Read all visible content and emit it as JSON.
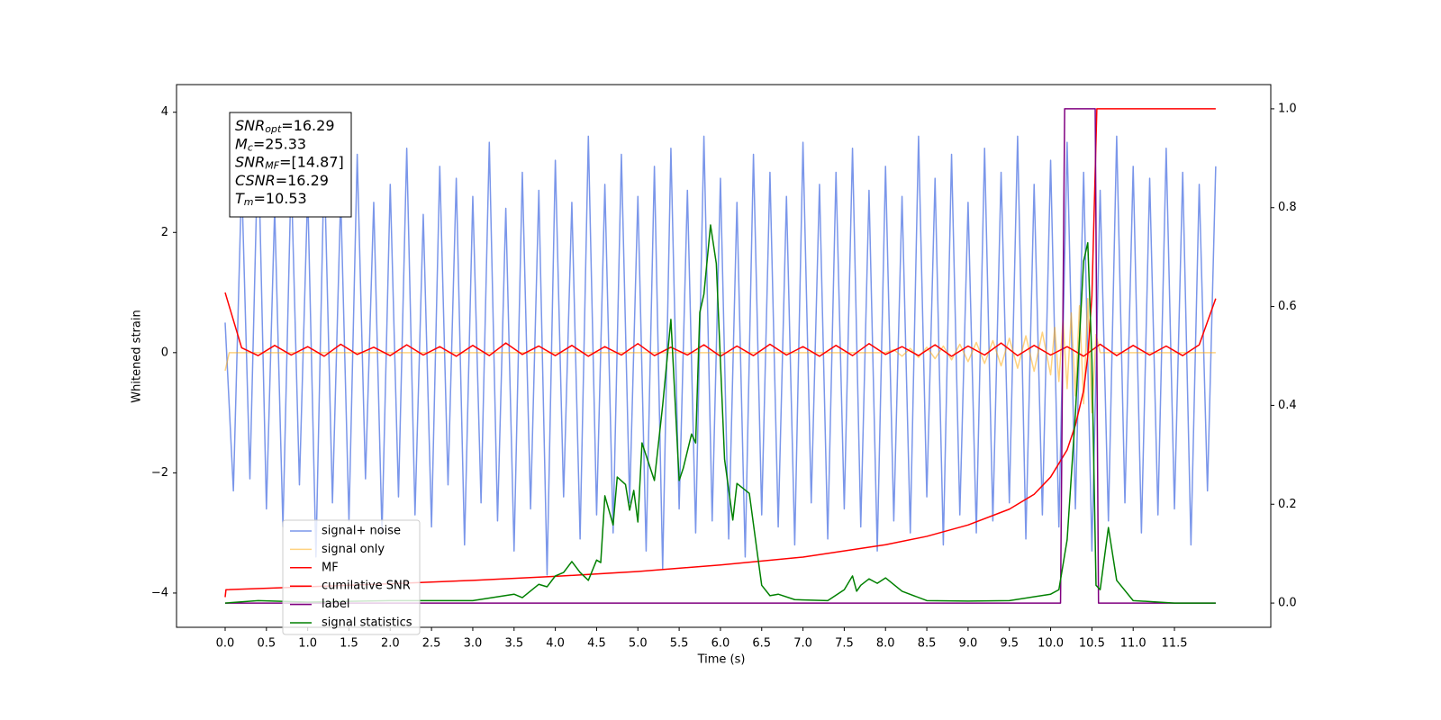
{
  "chart_data": {
    "type": "line",
    "xlabel": "Time (s)",
    "ylabel": "Whitened strain",
    "xlim": [
      -0.589,
      12.667
    ],
    "ylim": [
      -4.57,
      4.46
    ],
    "y2lim": [
      -0.049,
      1.049
    ],
    "xticks": [
      {
        "value": 0,
        "label": "0.0"
      },
      0.5,
      {
        "value": 1,
        "label": "1.0"
      },
      1.5,
      {
        "value": 2,
        "label": "2.0"
      },
      2.5,
      {
        "value": 3,
        "label": "3.0"
      },
      3.5,
      {
        "value": 4,
        "label": "4.0"
      },
      4.5,
      {
        "value": 5,
        "label": "5.0"
      },
      5.5,
      {
        "value": 6,
        "label": "6.0"
      },
      6.5,
      {
        "value": 7,
        "label": "7.0"
      },
      7.5,
      {
        "value": 8,
        "label": "8.0"
      },
      8.5,
      {
        "value": 9,
        "label": "9.0"
      },
      9.5,
      {
        "value": 10,
        "label": "10.0"
      },
      10.5,
      {
        "value": 11,
        "label": "11.0"
      },
      11.5
    ],
    "yticks": [
      {
        "value": -4,
        "label": "−4"
      },
      {
        "value": -2,
        "label": "−2"
      },
      0,
      2,
      4
    ],
    "y2ticks": [
      {
        "value": 0,
        "label": "0.0"
      },
      0.2,
      0.4,
      0.6,
      0.8,
      {
        "value": 1,
        "label": "1.0"
      }
    ],
    "legend": "lower left",
    "annotation": [
      {
        "main": "SNR",
        "sub": "opt",
        "rest": "=16.29"
      },
      {
        "main": "M",
        "sub": "c",
        "rest": "=25.33"
      },
      {
        "main": "SNR",
        "sub": "MF",
        "rest": "=[14.87]"
      },
      {
        "main": "CSNR",
        "rest": "=16.29"
      },
      {
        "main": "T",
        "sub": "m",
        "rest": "=10.53"
      }
    ],
    "series": [
      {
        "name": "signal+ noise",
        "color": "#4169e1",
        "alpha": 0.7,
        "x": [
          0,
          0.1,
          0.2,
          0.3,
          0.4,
          0.5,
          0.6,
          0.7,
          0.8,
          0.9,
          1,
          1.1,
          1.2,
          1.3,
          1.4,
          1.5,
          1.6,
          1.7,
          1.8,
          1.9,
          2,
          2.1,
          2.2,
          2.3,
          2.4,
          2.5,
          2.6,
          2.7,
          2.8,
          2.9,
          3,
          3.1,
          3.2,
          3.3,
          3.4,
          3.5,
          3.6,
          3.7,
          3.8,
          3.9,
          4,
          4.1,
          4.2,
          4.3,
          4.4,
          4.5,
          4.6,
          4.7,
          4.8,
          4.9,
          5,
          5.1,
          5.2,
          5.3,
          5.4,
          5.5,
          5.6,
          5.7,
          5.8,
          5.9,
          6,
          6.1,
          6.2,
          6.3,
          6.4,
          6.5,
          6.6,
          6.7,
          6.8,
          6.9,
          7,
          7.1,
          7.2,
          7.3,
          7.4,
          7.5,
          7.6,
          7.7,
          7.8,
          7.9,
          8,
          8.1,
          8.2,
          8.3,
          8.4,
          8.5,
          8.6,
          8.7,
          8.8,
          8.9,
          9,
          9.1,
          9.2,
          9.3,
          9.4,
          9.5,
          9.6,
          9.7,
          9.8,
          9.9,
          10,
          10.1,
          10.2,
          10.3,
          10.4,
          10.5,
          10.6,
          10.7,
          10.8,
          10.9,
          11,
          11.1,
          11.2,
          11.3,
          11.4,
          11.5,
          11.6,
          11.7,
          11.8,
          11.9,
          12
        ],
        "values": [
          0.5,
          -2.3,
          2.9,
          -2.1,
          3.6,
          -2.6,
          2.4,
          -2.9,
          3.0,
          -2.2,
          2.7,
          -3.4,
          3.2,
          -2.5,
          2.6,
          -2.8,
          3.3,
          -2.1,
          2.5,
          -3.0,
          2.8,
          -2.4,
          3.4,
          -2.7,
          2.3,
          -2.9,
          3.1,
          -2.2,
          2.9,
          -3.2,
          2.6,
          -2.5,
          3.5,
          -2.8,
          2.4,
          -3.3,
          3.0,
          -2.6,
          2.7,
          -3.7,
          3.2,
          -2.4,
          2.5,
          -3.1,
          3.6,
          -2.7,
          2.8,
          -3.0,
          3.3,
          -2.5,
          2.6,
          -3.3,
          3.1,
          -3.6,
          3.4,
          -2.6,
          2.7,
          -3.0,
          3.6,
          -2.8,
          2.9,
          -3.1,
          2.5,
          -3.4,
          3.3,
          -2.7,
          3.0,
          -2.9,
          2.6,
          -3.2,
          3.5,
          -2.5,
          2.8,
          -3.1,
          3.0,
          -2.6,
          3.4,
          -2.9,
          2.7,
          -3.3,
          3.1,
          -2.8,
          2.6,
          -3.0,
          3.6,
          -2.4,
          2.9,
          -3.2,
          3.3,
          -2.7,
          2.5,
          -3.0,
          3.4,
          -2.8,
          3.0,
          -2.5,
          3.6,
          -3.1,
          2.8,
          -2.7,
          3.2,
          -2.9,
          3.5,
          -2.6,
          3.0,
          -3.3,
          2.7,
          -2.8,
          3.6,
          -2.5,
          3.1,
          -3.0,
          2.9,
          -2.7,
          3.4,
          -2.6,
          3.0,
          -3.2,
          2.8,
          -2.3,
          3.1
        ]
      },
      {
        "name": "signal only",
        "color": "#ffa500",
        "alpha": 0.5,
        "x": [
          0,
          0.05,
          8.0,
          8.1,
          8.2,
          8.3,
          8.4,
          8.5,
          8.6,
          8.7,
          8.8,
          8.9,
          9.0,
          9.1,
          9.2,
          9.3,
          9.4,
          9.5,
          9.6,
          9.7,
          9.8,
          9.9,
          10.0,
          10.05,
          10.1,
          10.15,
          10.2,
          10.25,
          10.3,
          10.35,
          10.4,
          10.45,
          10.5,
          10.55,
          10.6,
          12.0
        ],
        "values": [
          -0.3,
          0,
          0,
          0.05,
          -0.06,
          0.07,
          -0.08,
          0.09,
          -0.1,
          0.11,
          -0.12,
          0.14,
          -0.15,
          0.17,
          -0.18,
          0.2,
          -0.22,
          0.24,
          -0.26,
          0.28,
          -0.31,
          0.34,
          -0.37,
          0.42,
          -0.48,
          0.54,
          -0.6,
          0.66,
          -0.72,
          0.78,
          -0.85,
          0.9,
          -1.0,
          0.3,
          0,
          0
        ]
      },
      {
        "name": "MF",
        "color": "#ff0000",
        "alpha": 1,
        "x": [
          0,
          0.2,
          0.4,
          0.6,
          0.8,
          1,
          1.2,
          1.4,
          1.6,
          1.8,
          2,
          2.2,
          2.4,
          2.6,
          2.8,
          3,
          3.2,
          3.4,
          3.6,
          3.8,
          4,
          4.2,
          4.4,
          4.6,
          4.8,
          5,
          5.2,
          5.4,
          5.6,
          5.8,
          6,
          6.2,
          6.4,
          6.6,
          6.8,
          7,
          7.2,
          7.4,
          7.6,
          7.8,
          8,
          8.2,
          8.4,
          8.6,
          8.8,
          9,
          9.2,
          9.4,
          9.6,
          9.8,
          10,
          10.2,
          10.4,
          10.6,
          10.8,
          11,
          11.2,
          11.4,
          11.6,
          11.8,
          12
        ],
        "values": [
          1.0,
          0.08,
          -0.05,
          0.12,
          -0.04,
          0.1,
          -0.06,
          0.14,
          -0.03,
          0.09,
          -0.05,
          0.13,
          -0.04,
          0.1,
          -0.06,
          0.12,
          -0.05,
          0.16,
          -0.03,
          0.11,
          -0.05,
          0.12,
          -0.06,
          0.1,
          -0.04,
          0.15,
          -0.05,
          0.09,
          -0.04,
          0.13,
          -0.06,
          0.11,
          -0.05,
          0.14,
          -0.04,
          0.1,
          -0.06,
          0.12,
          -0.05,
          0.15,
          -0.03,
          0.1,
          -0.05,
          0.13,
          -0.06,
          0.11,
          -0.04,
          0.16,
          -0.05,
          0.12,
          -0.04,
          0.1,
          -0.06,
          0.14,
          -0.05,
          0.12,
          -0.04,
          0.11,
          -0.05,
          0.13,
          0.9
        ]
      },
      {
        "name": "cumilative SNR",
        "color": "#ff0000",
        "alpha": 1,
        "axis": "y2",
        "x": [
          0,
          0.01,
          1,
          2,
          3,
          4,
          5,
          6,
          7,
          8,
          8.5,
          9,
          9.5,
          9.8,
          10,
          10.2,
          10.3,
          10.4,
          10.45,
          10.5,
          10.56,
          12.0
        ],
        "values": [
          0.012,
          0.027,
          0.033,
          0.039,
          0.046,
          0.054,
          0.064,
          0.077,
          0.093,
          0.118,
          0.135,
          0.158,
          0.19,
          0.22,
          0.255,
          0.31,
          0.36,
          0.43,
          0.5,
          0.62,
          1.0,
          1.0
        ]
      },
      {
        "name": "label",
        "color": "#800080",
        "alpha": 1,
        "axis": "y2",
        "x": [
          0,
          10.12,
          10.17,
          10.54,
          10.58,
          12.0
        ],
        "values": [
          0,
          0,
          1,
          1,
          0,
          0
        ]
      },
      {
        "name": "signal statistics",
        "color": "#008000",
        "alpha": 1,
        "axis": "y2",
        "x": [
          0,
          0.4,
          1.0,
          2.0,
          3.0,
          3.5,
          3.6,
          3.8,
          3.9,
          4.0,
          4.1,
          4.2,
          4.3,
          4.4,
          4.5,
          4.55,
          4.6,
          4.7,
          4.75,
          4.85,
          4.9,
          4.95,
          5.0,
          5.05,
          5.2,
          5.3,
          5.4,
          5.5,
          5.55,
          5.65,
          5.7,
          5.75,
          5.8,
          5.88,
          5.95,
          6.05,
          6.15,
          6.2,
          6.35,
          6.45,
          6.5,
          6.6,
          6.7,
          6.9,
          7.3,
          7.5,
          7.6,
          7.65,
          7.7,
          7.8,
          7.9,
          8.0,
          8.2,
          8.5,
          9.0,
          9.5,
          10.0,
          10.1,
          10.2,
          10.3,
          10.4,
          10.45,
          10.5,
          10.55,
          10.6,
          10.7,
          10.8,
          11.0,
          11.5,
          12.0
        ],
        "values": [
          0,
          0.005,
          0.002,
          0.005,
          0.005,
          0.018,
          0.011,
          0.038,
          0.033,
          0.055,
          0.062,
          0.084,
          0.062,
          0.046,
          0.087,
          0.082,
          0.217,
          0.158,
          0.255,
          0.24,
          0.188,
          0.228,
          0.164,
          0.324,
          0.248,
          0.4,
          0.574,
          0.248,
          0.273,
          0.342,
          0.324,
          0.588,
          0.625,
          0.765,
          0.687,
          0.291,
          0.168,
          0.242,
          0.222,
          0.097,
          0.036,
          0.015,
          0.018,
          0.007,
          0.005,
          0.027,
          0.055,
          0.024,
          0.036,
          0.049,
          0.04,
          0.051,
          0.024,
          0.005,
          0.004,
          0.005,
          0.018,
          0.027,
          0.128,
          0.383,
          0.692,
          0.729,
          0.492,
          0.036,
          0.027,
          0.153,
          0.046,
          0.005,
          0.0,
          0.0
        ]
      }
    ]
  }
}
